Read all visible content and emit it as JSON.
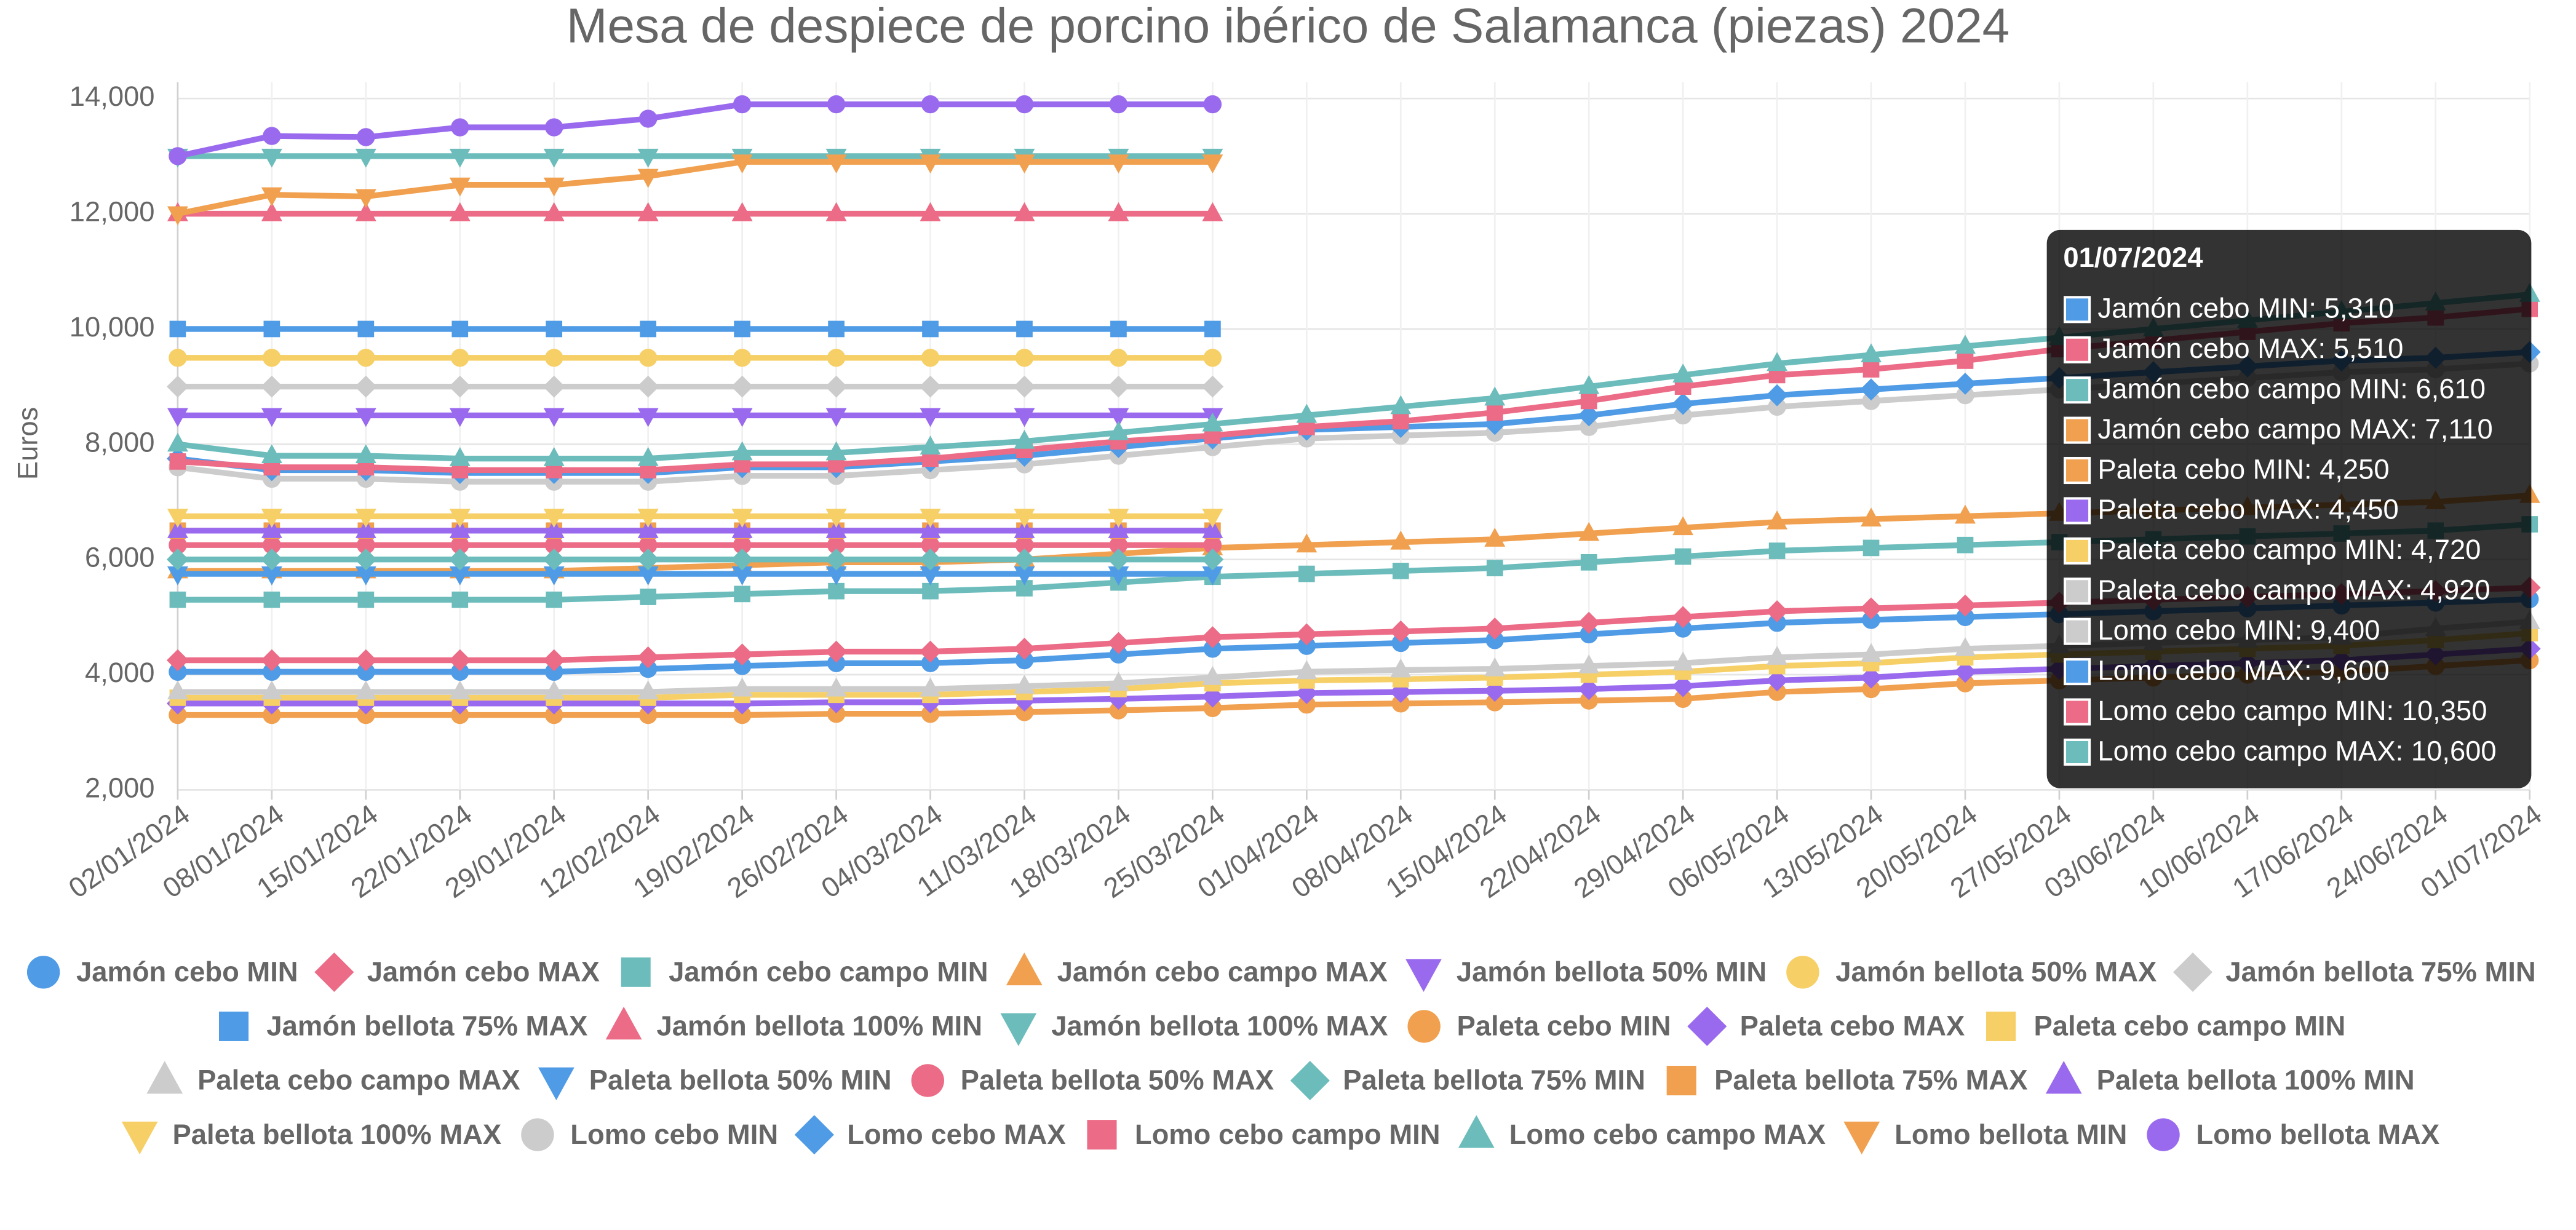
{
  "chart_data": {
    "type": "line",
    "title": "Mesa de despiece de porcino ibérico de Salamanca (piezas) 2024",
    "y_label": "Euros",
    "categories": [
      "02/01/2024",
      "08/01/2024",
      "15/01/2024",
      "22/01/2024",
      "29/01/2024",
      "12/02/2024",
      "19/02/2024",
      "26/02/2024",
      "04/03/2024",
      "11/03/2024",
      "18/03/2024",
      "25/03/2024",
      "01/04/2024",
      "08/04/2024",
      "15/04/2024",
      "22/04/2024",
      "29/04/2024",
      "06/05/2024",
      "13/05/2024",
      "20/05/2024",
      "27/05/2024",
      "03/06/2024",
      "10/06/2024",
      "17/06/2024",
      "24/06/2024",
      "01/07/2024"
    ],
    "ylim": [
      2000,
      14000
    ],
    "yticks": [
      {
        "value": 2000,
        "label": "2,000"
      },
      {
        "value": 4000,
        "label": "4,000"
      },
      {
        "value": 6000,
        "label": "6,000"
      },
      {
        "value": 8000,
        "label": "8,000"
      },
      {
        "value": 10000,
        "label": "10,000"
      },
      {
        "value": 12000,
        "label": "12,000"
      },
      {
        "value": 14000,
        "label": "14,000"
      }
    ],
    "grid": true,
    "legend": "bottom",
    "series": [
      {
        "name": "Jamón cebo MIN",
        "color": "#4f9be6",
        "marker": "circle",
        "values": [
          4050,
          4050,
          4050,
          4050,
          4050,
          4100,
          4150,
          4200,
          4200,
          4250,
          4350,
          4450,
          4500,
          4550,
          4600,
          4700,
          4800,
          4900,
          4950,
          5000,
          5050,
          5100,
          5150,
          5200,
          5250,
          5310
        ]
      },
      {
        "name": "Jamón cebo MAX",
        "color": "#ec6b86",
        "marker": "diamond",
        "values": [
          4250,
          4250,
          4250,
          4250,
          4250,
          4300,
          4350,
          4400,
          4400,
          4450,
          4550,
          4650,
          4700,
          4750,
          4800,
          4900,
          5000,
          5100,
          5150,
          5200,
          5250,
          5300,
          5350,
          5400,
          5450,
          5510
        ]
      },
      {
        "name": "Jamón cebo campo MIN",
        "color": "#6cbcbc",
        "marker": "square",
        "values": [
          5300,
          5300,
          5300,
          5300,
          5300,
          5350,
          5400,
          5450,
          5450,
          5500,
          5600,
          5700,
          5750,
          5800,
          5850,
          5950,
          6050,
          6150,
          6200,
          6250,
          6300,
          6350,
          6400,
          6450,
          6500,
          6610
        ]
      },
      {
        "name": "Jamón cebo campo MAX",
        "color": "#f0a04f",
        "marker": "triangle",
        "values": [
          5800,
          5800,
          5800,
          5800,
          5800,
          5850,
          5900,
          5950,
          5950,
          6000,
          6100,
          6200,
          6250,
          6300,
          6350,
          6450,
          6550,
          6650,
          6700,
          6750,
          6800,
          6850,
          6900,
          6950,
          7000,
          7110
        ]
      },
      {
        "name": "Jamón bellota 50% MIN",
        "color": "#9a6aee",
        "marker": "triangle-down",
        "values": [
          8500,
          8500,
          8500,
          8500,
          8500,
          8500,
          8500,
          8500,
          8500,
          8500,
          8500,
          8500,
          null,
          null,
          null,
          null,
          null,
          null,
          null,
          null,
          null,
          null,
          null,
          null,
          null,
          null
        ]
      },
      {
        "name": "Jamón bellota 50% MAX",
        "color": "#f6cf66",
        "marker": "circle",
        "values": [
          9500,
          9500,
          9500,
          9500,
          9500,
          9500,
          9500,
          9500,
          9500,
          9500,
          9500,
          9500,
          null,
          null,
          null,
          null,
          null,
          null,
          null,
          null,
          null,
          null,
          null,
          null,
          null,
          null
        ]
      },
      {
        "name": "Jamón bellota 75% MIN",
        "color": "#cccccc",
        "marker": "diamond",
        "values": [
          9000,
          9000,
          9000,
          9000,
          9000,
          9000,
          9000,
          9000,
          9000,
          9000,
          9000,
          9000,
          null,
          null,
          null,
          null,
          null,
          null,
          null,
          null,
          null,
          null,
          null,
          null,
          null,
          null
        ]
      },
      {
        "name": "Jamón bellota 75% MAX",
        "color": "#4f9be6",
        "marker": "square",
        "values": [
          10000,
          10000,
          10000,
          10000,
          10000,
          10000,
          10000,
          10000,
          10000,
          10000,
          10000,
          10000,
          null,
          null,
          null,
          null,
          null,
          null,
          null,
          null,
          null,
          null,
          null,
          null,
          null,
          null
        ]
      },
      {
        "name": "Jamón bellota 100% MIN",
        "color": "#ec6b86",
        "marker": "triangle",
        "values": [
          12000,
          12000,
          12000,
          12000,
          12000,
          12000,
          12000,
          12000,
          12000,
          12000,
          12000,
          12000,
          null,
          null,
          null,
          null,
          null,
          null,
          null,
          null,
          null,
          null,
          null,
          null,
          null,
          null
        ]
      },
      {
        "name": "Jamón bellota 100% MAX",
        "color": "#6cbcbc",
        "marker": "triangle-down",
        "values": [
          13000,
          13000,
          13000,
          13000,
          13000,
          13000,
          13000,
          13000,
          13000,
          13000,
          13000,
          13000,
          null,
          null,
          null,
          null,
          null,
          null,
          null,
          null,
          null,
          null,
          null,
          null,
          null,
          null
        ]
      },
      {
        "name": "Paleta cebo MIN",
        "color": "#f0a04f",
        "marker": "circle",
        "values": [
          3300,
          3300,
          3300,
          3300,
          3300,
          3300,
          3300,
          3320,
          3320,
          3350,
          3380,
          3420,
          3480,
          3500,
          3520,
          3550,
          3580,
          3700,
          3750,
          3850,
          3900,
          3950,
          4000,
          4050,
          4150,
          4250
        ]
      },
      {
        "name": "Paleta cebo MAX",
        "color": "#9a6aee",
        "marker": "diamond",
        "values": [
          3500,
          3500,
          3500,
          3500,
          3500,
          3500,
          3500,
          3520,
          3520,
          3550,
          3580,
          3620,
          3680,
          3700,
          3720,
          3750,
          3800,
          3900,
          3950,
          4050,
          4100,
          4150,
          4200,
          4250,
          4350,
          4450
        ]
      },
      {
        "name": "Paleta cebo campo MIN",
        "color": "#f6cf66",
        "marker": "square",
        "values": [
          3600,
          3600,
          3600,
          3600,
          3600,
          3600,
          3650,
          3650,
          3650,
          3700,
          3750,
          3850,
          3900,
          3920,
          3950,
          4000,
          4050,
          4150,
          4200,
          4300,
          4350,
          4400,
          4450,
          4500,
          4600,
          4720
        ]
      },
      {
        "name": "Paleta cebo campo MAX",
        "color": "#cccccc",
        "marker": "triangle",
        "values": [
          3700,
          3700,
          3700,
          3700,
          3700,
          3700,
          3750,
          3750,
          3750,
          3800,
          3850,
          3950,
          4050,
          4080,
          4100,
          4150,
          4200,
          4300,
          4350,
          4450,
          4500,
          4550,
          4600,
          4650,
          4800,
          4920
        ]
      },
      {
        "name": "Paleta bellota 50% MIN",
        "color": "#4f9be6",
        "marker": "triangle-down",
        "values": [
          5750,
          5750,
          5750,
          5750,
          5750,
          5750,
          5750,
          5750,
          5750,
          5750,
          5750,
          5750,
          null,
          null,
          null,
          null,
          null,
          null,
          null,
          null,
          null,
          null,
          null,
          null,
          null,
          null
        ]
      },
      {
        "name": "Paleta bellota 50% MAX",
        "color": "#ec6b86",
        "marker": "circle",
        "values": [
          6250,
          6250,
          6250,
          6250,
          6250,
          6250,
          6250,
          6250,
          6250,
          6250,
          6250,
          6250,
          null,
          null,
          null,
          null,
          null,
          null,
          null,
          null,
          null,
          null,
          null,
          null,
          null,
          null
        ]
      },
      {
        "name": "Paleta bellota 75% MIN",
        "color": "#6cbcbc",
        "marker": "diamond",
        "values": [
          6000,
          6000,
          6000,
          6000,
          6000,
          6000,
          6000,
          6000,
          6000,
          6000,
          6000,
          6000,
          null,
          null,
          null,
          null,
          null,
          null,
          null,
          null,
          null,
          null,
          null,
          null,
          null,
          null
        ]
      },
      {
        "name": "Paleta bellota 75% MAX",
        "color": "#f0a04f",
        "marker": "square",
        "values": [
          6500,
          6500,
          6500,
          6500,
          6500,
          6500,
          6500,
          6500,
          6500,
          6500,
          6500,
          6500,
          null,
          null,
          null,
          null,
          null,
          null,
          null,
          null,
          null,
          null,
          null,
          null,
          null,
          null
        ]
      },
      {
        "name": "Paleta bellota 100% MIN",
        "color": "#9a6aee",
        "marker": "triangle",
        "values": [
          6500,
          6500,
          6500,
          6500,
          6500,
          6500,
          6500,
          6500,
          6500,
          6500,
          6500,
          6500,
          null,
          null,
          null,
          null,
          null,
          null,
          null,
          null,
          null,
          null,
          null,
          null,
          null,
          null
        ]
      },
      {
        "name": "Paleta bellota 100% MAX",
        "color": "#f6cf66",
        "marker": "triangle-down",
        "values": [
          6750,
          6750,
          6750,
          6750,
          6750,
          6750,
          6750,
          6750,
          6750,
          6750,
          6750,
          6750,
          null,
          null,
          null,
          null,
          null,
          null,
          null,
          null,
          null,
          null,
          null,
          null,
          null,
          null
        ]
      },
      {
        "name": "Lomo cebo MIN",
        "color": "#cccccc",
        "marker": "circle",
        "values": [
          7600,
          7400,
          7400,
          7350,
          7350,
          7350,
          7450,
          7450,
          7550,
          7650,
          7800,
          7950,
          8100,
          8150,
          8200,
          8300,
          8500,
          8650,
          8750,
          8850,
          8950,
          9050,
          9150,
          9250,
          9300,
          9400
        ]
      },
      {
        "name": "Lomo cebo MAX",
        "color": "#4f9be6",
        "marker": "diamond",
        "values": [
          7750,
          7550,
          7550,
          7500,
          7500,
          7500,
          7600,
          7600,
          7700,
          7800,
          7950,
          8100,
          8250,
          8300,
          8350,
          8500,
          8700,
          8850,
          8950,
          9050,
          9150,
          9250,
          9350,
          9450,
          9500,
          9600
        ]
      },
      {
        "name": "Lomo cebo campo MIN",
        "color": "#ec6b86",
        "marker": "square",
        "values": [
          7700,
          7600,
          7600,
          7550,
          7550,
          7550,
          7650,
          7650,
          7750,
          7900,
          8050,
          8150,
          8300,
          8400,
          8550,
          8750,
          9000,
          9200,
          9300,
          9450,
          9650,
          9800,
          9950,
          10100,
          10200,
          10350
        ]
      },
      {
        "name": "Lomo cebo campo MAX",
        "color": "#6cbcbc",
        "marker": "triangle",
        "values": [
          8000,
          7800,
          7800,
          7750,
          7750,
          7750,
          7850,
          7850,
          7950,
          8050,
          8200,
          8350,
          8500,
          8650,
          8800,
          9000,
          9200,
          9400,
          9550,
          9700,
          9850,
          10000,
          10150,
          10300,
          10450,
          10600
        ]
      },
      {
        "name": "Lomo bellota MIN",
        "color": "#f0a04f",
        "marker": "triangle-down",
        "values": [
          12000,
          12330,
          12300,
          12500,
          12500,
          12650,
          12900,
          12900,
          12900,
          12900,
          12900,
          12900,
          null,
          null,
          null,
          null,
          null,
          null,
          null,
          null,
          null,
          null,
          null,
          null,
          null,
          null
        ]
      },
      {
        "name": "Lomo bellota MAX",
        "color": "#9a6aee",
        "marker": "circle",
        "values": [
          13000,
          13350,
          13330,
          13500,
          13500,
          13650,
          13900,
          13900,
          13900,
          13900,
          13900,
          13900,
          null,
          null,
          null,
          null,
          null,
          null,
          null,
          null,
          null,
          null,
          null,
          null,
          null,
          null
        ]
      }
    ],
    "tooltip": {
      "title": "01/07/2024",
      "items": [
        {
          "label": "Jamón cebo MIN: 5,310",
          "color": "#4f9be6"
        },
        {
          "label": "Jamón cebo MAX: 5,510",
          "color": "#ec6b86"
        },
        {
          "label": "Jamón cebo campo MIN: 6,610",
          "color": "#6cbcbc"
        },
        {
          "label": "Jamón cebo campo MAX: 7,110",
          "color": "#f0a04f"
        },
        {
          "label": "Paleta cebo MIN: 4,250",
          "color": "#f0a04f"
        },
        {
          "label": "Paleta cebo MAX: 4,450",
          "color": "#9a6aee"
        },
        {
          "label": "Paleta cebo campo MIN: 4,720",
          "color": "#f6cf66"
        },
        {
          "label": "Paleta cebo campo MAX: 4,920",
          "color": "#cccccc"
        },
        {
          "label": "Lomo cebo MIN: 9,400",
          "color": "#cccccc"
        },
        {
          "label": "Lomo cebo MAX: 9,600",
          "color": "#4f9be6"
        },
        {
          "label": "Lomo cebo campo MIN: 10,350",
          "color": "#ec6b86"
        },
        {
          "label": "Lomo cebo campo MAX: 10,600",
          "color": "#6cbcbc"
        }
      ]
    }
  }
}
